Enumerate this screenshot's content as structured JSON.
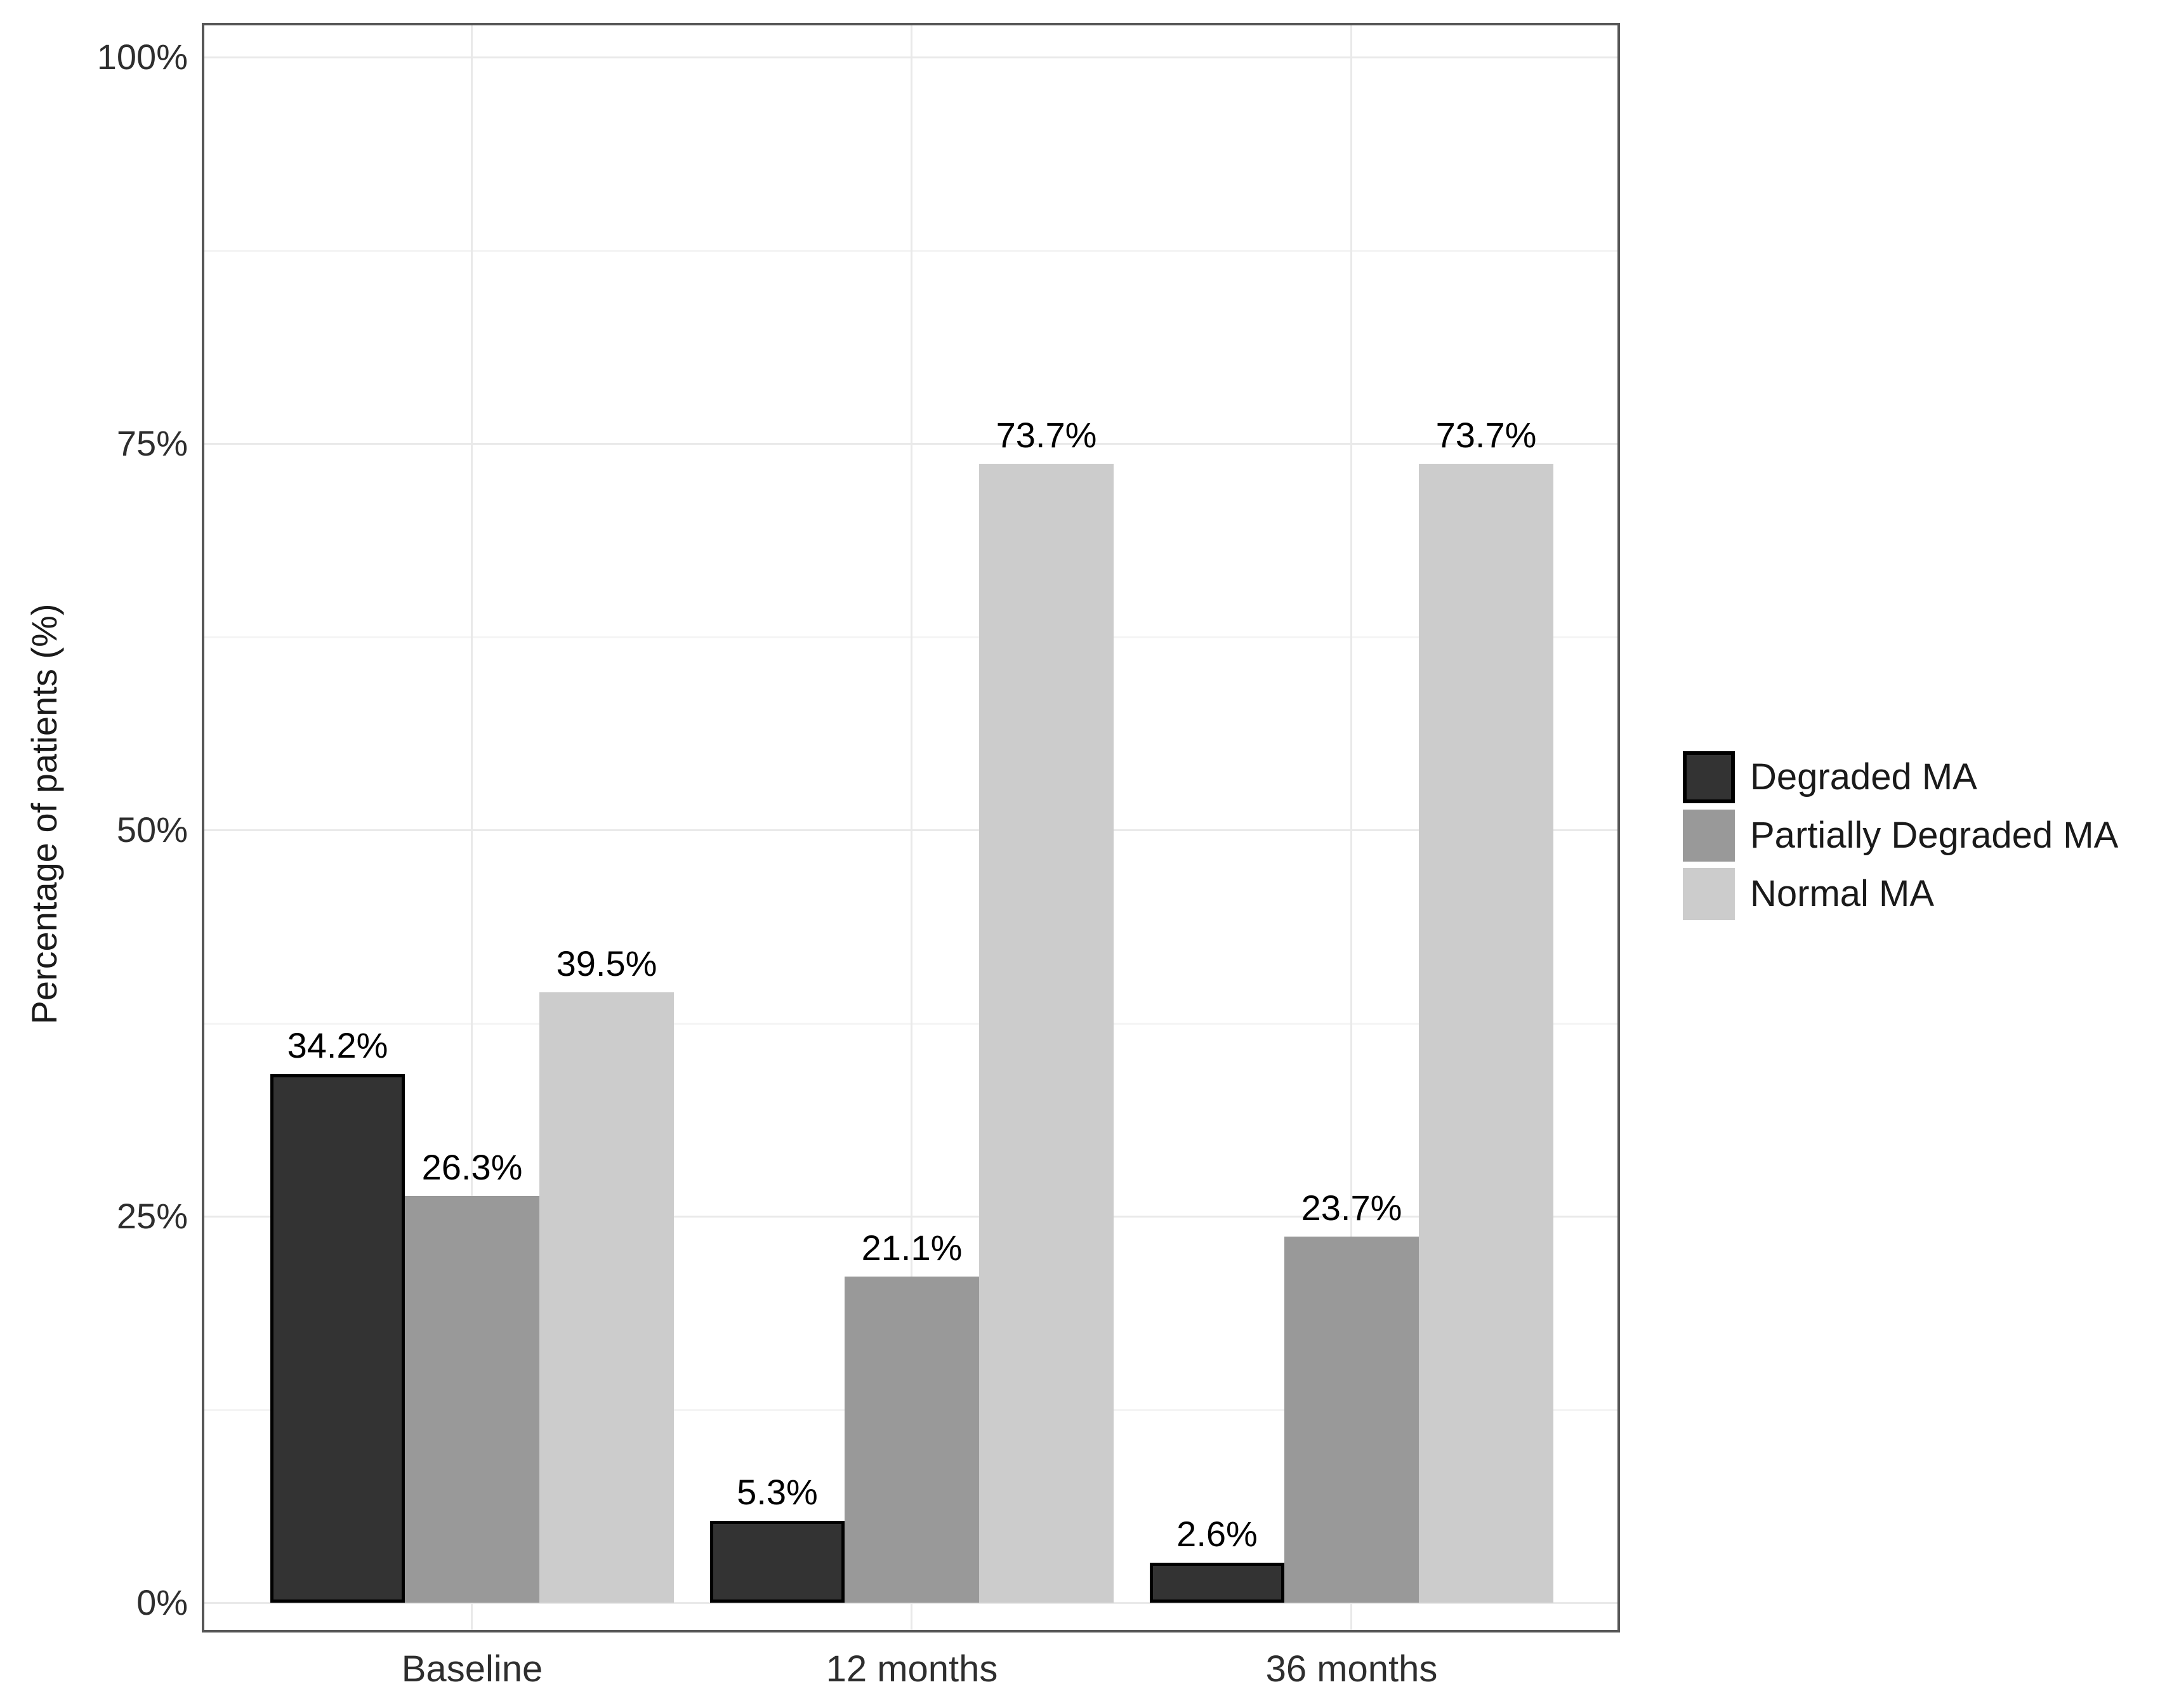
{
  "figure": {
    "background": "#ffffff"
  },
  "chart_data": {
    "type": "bar",
    "title": "",
    "categories": [
      "Baseline",
      "12 months",
      "36 months"
    ],
    "series": [
      {
        "name": "Degraded MA",
        "color": "#333333",
        "border_color": "#000000",
        "values": [
          34.2,
          5.3,
          2.6
        ],
        "value_labels": [
          "34.2%",
          "5.3%",
          "2.6%"
        ]
      },
      {
        "name": "Partially Degraded MA",
        "color": "#999999",
        "border_color": "",
        "values": [
          26.3,
          21.1,
          23.7
        ],
        "value_labels": [
          "26.3%",
          "21.1%",
          "23.7%"
        ]
      },
      {
        "name": "Normal MA",
        "color": "#cccccc",
        "border_color": "",
        "values": [
          39.5,
          73.7,
          73.7
        ],
        "value_labels": [
          "39.5%",
          "73.7%",
          "73.7%"
        ]
      }
    ],
    "xlabel": "",
    "ylabel": "Percentage of patients (%)",
    "ylim": [
      0,
      100
    ],
    "yticks": [
      {
        "value": 0,
        "label": "0%"
      },
      {
        "value": 25,
        "label": "25%"
      },
      {
        "value": 50,
        "label": "50%"
      },
      {
        "value": 75,
        "label": "75%"
      },
      {
        "value": 100,
        "label": "100%"
      }
    ],
    "minor_ticks": [
      12.5,
      37.5,
      62.5,
      87.5
    ],
    "grid": {
      "horizontal_major": true,
      "horizontal_minor": true,
      "vertical_major": true
    },
    "legend_position": "right",
    "colors": {
      "panel_border": "#575757",
      "grid_major": "#e9e9e9",
      "grid_minor": "#f4f4f4",
      "tick_label": "#2e2e2e",
      "value_label": "#000000",
      "axis_title": "#1a1a1a",
      "legend_text": "#1a1a1a"
    }
  }
}
